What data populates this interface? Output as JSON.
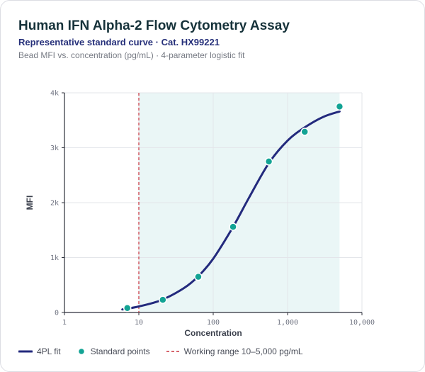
{
  "header": {
    "title": "Human IFN Alpha-2 Flow Cytometry Assay",
    "subtitle": "Representative standard curve · Cat. HX99221",
    "caption": "Bead MFI vs. concentration (pg/mL) · 4-parameter logistic fit"
  },
  "colors": {
    "curve": "#232a7d",
    "points": "#12a394",
    "range_line": "#c9303b",
    "range_fill": "#eaf6f6"
  },
  "chart_data": {
    "type": "scatter",
    "x_scale": "log",
    "xlabel": "Concentration",
    "ylabel": "MFI",
    "xlim": [
      1,
      10000
    ],
    "ylim": [
      0,
      4000
    ],
    "x_ticks": [
      {
        "value": 1,
        "label": "1"
      },
      {
        "value": 10,
        "label": "10"
      },
      {
        "value": 100,
        "label": "100"
      },
      {
        "value": 1000,
        "label": "1,000"
      },
      {
        "value": 10000,
        "label": "10,000"
      }
    ],
    "y_ticks": [
      {
        "value": 0,
        "label": "0"
      },
      {
        "value": 1000,
        "label": "1k"
      },
      {
        "value": 2000,
        "label": "2k"
      },
      {
        "value": 3000,
        "label": "3k"
      },
      {
        "value": 4000,
        "label": "4k"
      }
    ],
    "grid": true,
    "working_range": [
      10,
      5000
    ],
    "points": [
      {
        "x": 7,
        "y": 80
      },
      {
        "x": 21,
        "y": 230
      },
      {
        "x": 63,
        "y": 650
      },
      {
        "x": 185,
        "y": 1560
      },
      {
        "x": 560,
        "y": 2750
      },
      {
        "x": 1700,
        "y": 3290
      },
      {
        "x": 5000,
        "y": 3750
      }
    ],
    "fit_curve": [
      {
        "x": 6,
        "y": 55
      },
      {
        "x": 10,
        "y": 110
      },
      {
        "x": 20,
        "y": 225
      },
      {
        "x": 40,
        "y": 440
      },
      {
        "x": 63,
        "y": 660
      },
      {
        "x": 100,
        "y": 980
      },
      {
        "x": 185,
        "y": 1560
      },
      {
        "x": 300,
        "y": 2080
      },
      {
        "x": 560,
        "y": 2720
      },
      {
        "x": 1000,
        "y": 3130
      },
      {
        "x": 1700,
        "y": 3370
      },
      {
        "x": 3000,
        "y": 3560
      },
      {
        "x": 5000,
        "y": 3660
      }
    ],
    "legend": {
      "position": "bottom",
      "items": [
        {
          "label": "4PL fit",
          "kind": "line"
        },
        {
          "label": "Standard points",
          "kind": "dot"
        },
        {
          "label": "Working range 10–5,000 pg/mL",
          "kind": "dashed"
        }
      ]
    }
  }
}
